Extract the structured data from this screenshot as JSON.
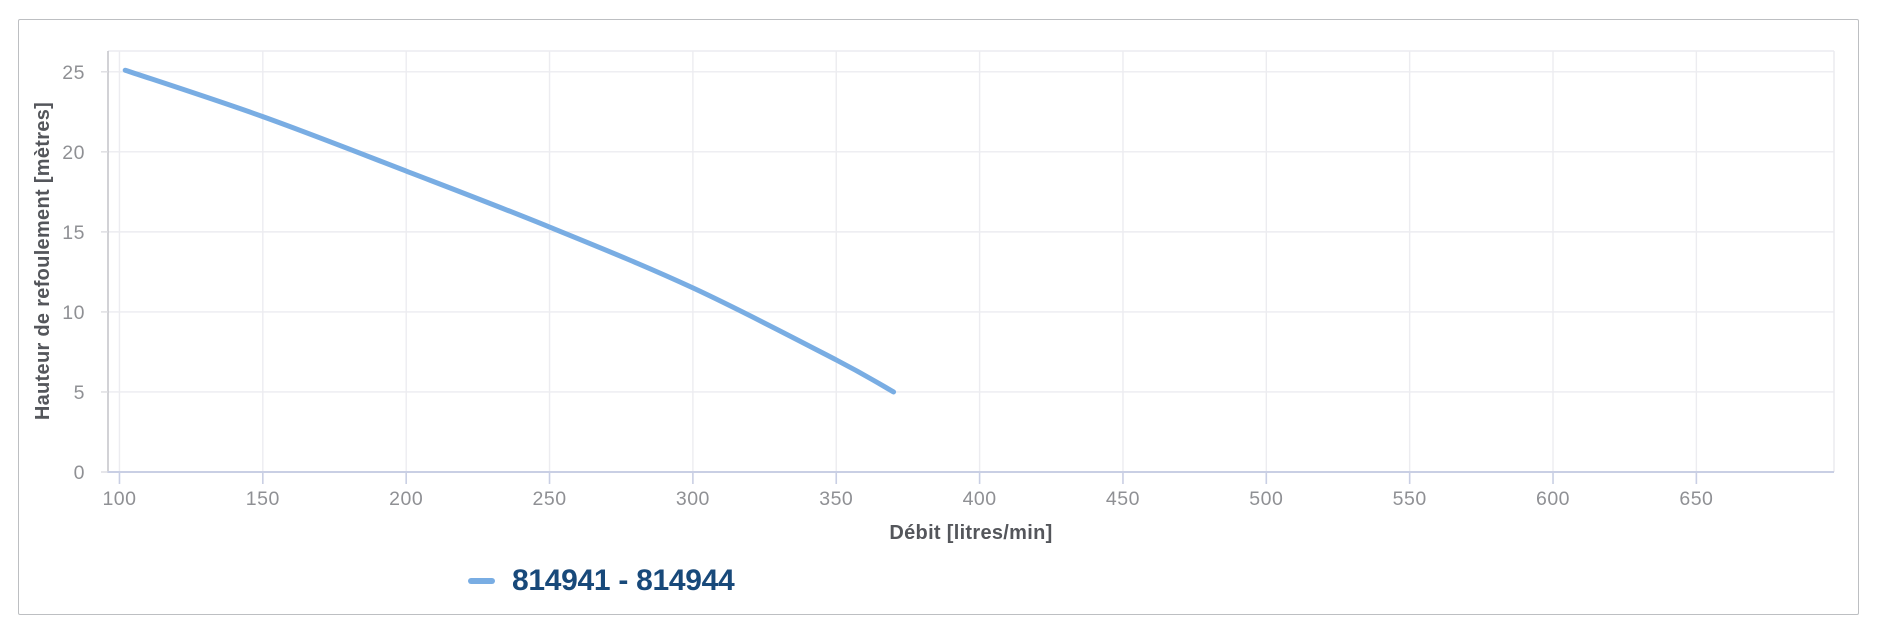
{
  "chart_data": {
    "type": "line",
    "title": "",
    "xlabel": "Débit [litres/min]",
    "ylabel": "Hauteur de refoulement [mètres]",
    "xlim": [
      96,
      698
    ],
    "ylim": [
      0,
      26.3
    ],
    "xticks": [
      100,
      150,
      200,
      250,
      300,
      350,
      400,
      450,
      500,
      550,
      600,
      650
    ],
    "yticks": [
      0,
      5,
      10,
      15,
      20,
      25
    ],
    "grid": true,
    "legend_position": "bottom-left",
    "series": [
      {
        "name": "814941 - 814944",
        "color": "#79ade3",
        "points": [
          [
            102,
            25.1
          ],
          [
            150,
            22.2
          ],
          [
            200,
            18.8
          ],
          [
            250,
            15.3
          ],
          [
            300,
            11.5
          ],
          [
            350,
            7.0
          ],
          [
            370,
            5.0
          ]
        ]
      }
    ]
  },
  "legend": {
    "label": "814941 - 814944"
  },
  "colors": {
    "series_line": "#79ade3",
    "legend_text": "#18497a",
    "tick_label": "#8f9094",
    "axis_title": "#54565b",
    "grid_line": "#ececf0",
    "x_axis_line": "#c9cfe4",
    "y_axis_line": "#c6c7cc",
    "y_tick_mark": "#dcdce0",
    "panel_border": "#bdbfc2",
    "background": "#ffffff"
  }
}
